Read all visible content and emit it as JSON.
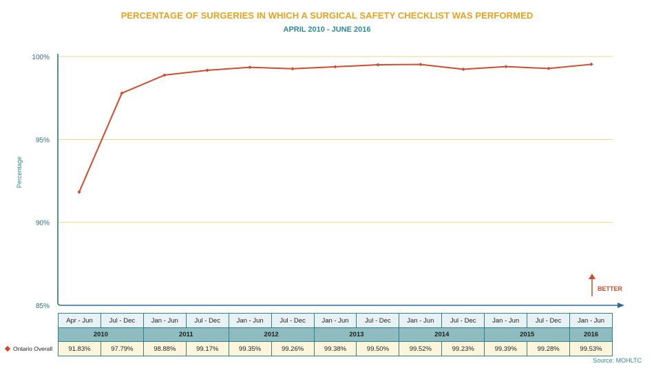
{
  "title": "PERCENTAGE OF SURGERIES IN WHICH A SURGICAL SAFETY CHECKLIST WAS PERFORMED",
  "subtitle": "APRIL 2010 - JUNE 2016",
  "source": "Source: MOHLTC",
  "better_label": "BETTER",
  "colors": {
    "line": "#d24a2a",
    "axis": "#2c6e8a",
    "grid": "#f3d58a",
    "title": "#e8a21c",
    "subtitle": "#2c8a94"
  },
  "chart_data": {
    "type": "line",
    "ylabel": "Percentage",
    "ylim": [
      85,
      100
    ],
    "yticks": [
      "85%",
      "90%",
      "95%",
      "100%"
    ],
    "grid": true,
    "categories": [
      "Apr - Jun",
      "Jul - Dec",
      "Jan - Jun",
      "Jul - Dec",
      "Jan - Jun",
      "Jul - Dec",
      "Jan - Jun",
      "Jul - Dec",
      "Jan - Jun",
      "Jul - Dec",
      "Jan - Jun",
      "Jul - Dec",
      "Jan - Jun"
    ],
    "years": [
      {
        "label": "2010",
        "span": 2
      },
      {
        "label": "2011",
        "span": 2
      },
      {
        "label": "2012",
        "span": 2
      },
      {
        "label": "2013",
        "span": 2
      },
      {
        "label": "2014",
        "span": 2
      },
      {
        "label": "2015",
        "span": 2
      },
      {
        "label": "2016",
        "span": 1
      }
    ],
    "series": [
      {
        "name": "Ontario Overall",
        "values": [
          91.83,
          97.79,
          98.88,
          99.17,
          99.35,
          99.26,
          99.38,
          99.5,
          99.52,
          99.23,
          99.39,
          99.28,
          99.53
        ],
        "labels": [
          "91.83%",
          "97.79%",
          "98.88%",
          "99.17%",
          "99.35%",
          "99.26%",
          "99.38%",
          "99.50%",
          "99.52%",
          "99.23%",
          "99.39%",
          "99.28%",
          "99.53%"
        ]
      }
    ]
  }
}
